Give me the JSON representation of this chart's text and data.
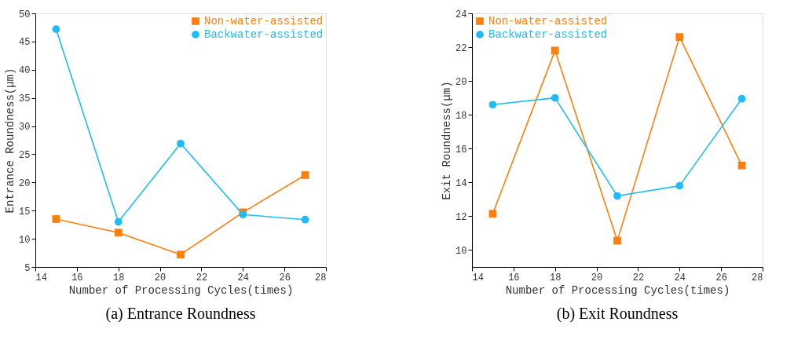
{
  "chart_data": [
    {
      "type": "line",
      "title": "(a) Entrance Roundness",
      "xlabel": "Number of Processing Cycles(times)",
      "ylabel": "Entrance Roundness(μm)",
      "x": [
        15,
        18,
        21,
        24,
        27
      ],
      "series": [
        {
          "name": "Non-water-assisted",
          "color": "#ff7f0e",
          "marker": "square",
          "values": [
            13.5,
            11.1,
            7.2,
            14.7,
            21.3
          ]
        },
        {
          "name": "Backwater-assisted",
          "color": "#1ebcf5",
          "marker": "circle",
          "values": [
            47.2,
            13.0,
            26.9,
            14.3,
            13.4
          ]
        }
      ],
      "xlim": [
        14,
        28
      ],
      "xticks": [
        14,
        16,
        18,
        20,
        22,
        24,
        26,
        28
      ],
      "ylim": [
        5,
        50
      ],
      "yticks": [
        5,
        10,
        15,
        20,
        25,
        30,
        35,
        40,
        45,
        50
      ],
      "grid": false,
      "legend": "top right",
      "line_style": "solid"
    },
    {
      "type": "line",
      "title": "(b) Exit Roundness",
      "xlabel": "Number of Processing Cycles(times)",
      "ylabel": "Exit Roundness(μm)",
      "x": [
        15,
        18,
        21,
        24,
        27
      ],
      "series": [
        {
          "name": "Non-water-assisted",
          "color": "#ff7f0e",
          "marker": "square",
          "values": [
            12.15,
            21.8,
            10.55,
            22.6,
            15.0
          ]
        },
        {
          "name": "Backwater-assisted",
          "color": "#1ebcf5",
          "marker": "circle",
          "values": [
            18.6,
            19.0,
            13.2,
            13.8,
            18.95
          ]
        }
      ],
      "xlim": [
        14,
        28
      ],
      "xticks": [
        14,
        16,
        18,
        20,
        22,
        24,
        26,
        28
      ],
      "ylim": [
        9,
        24
      ],
      "yticks": [
        10,
        12,
        14,
        16,
        18,
        20,
        22,
        24
      ],
      "grid": false,
      "legend": "top left",
      "line_style": "solid"
    }
  ]
}
